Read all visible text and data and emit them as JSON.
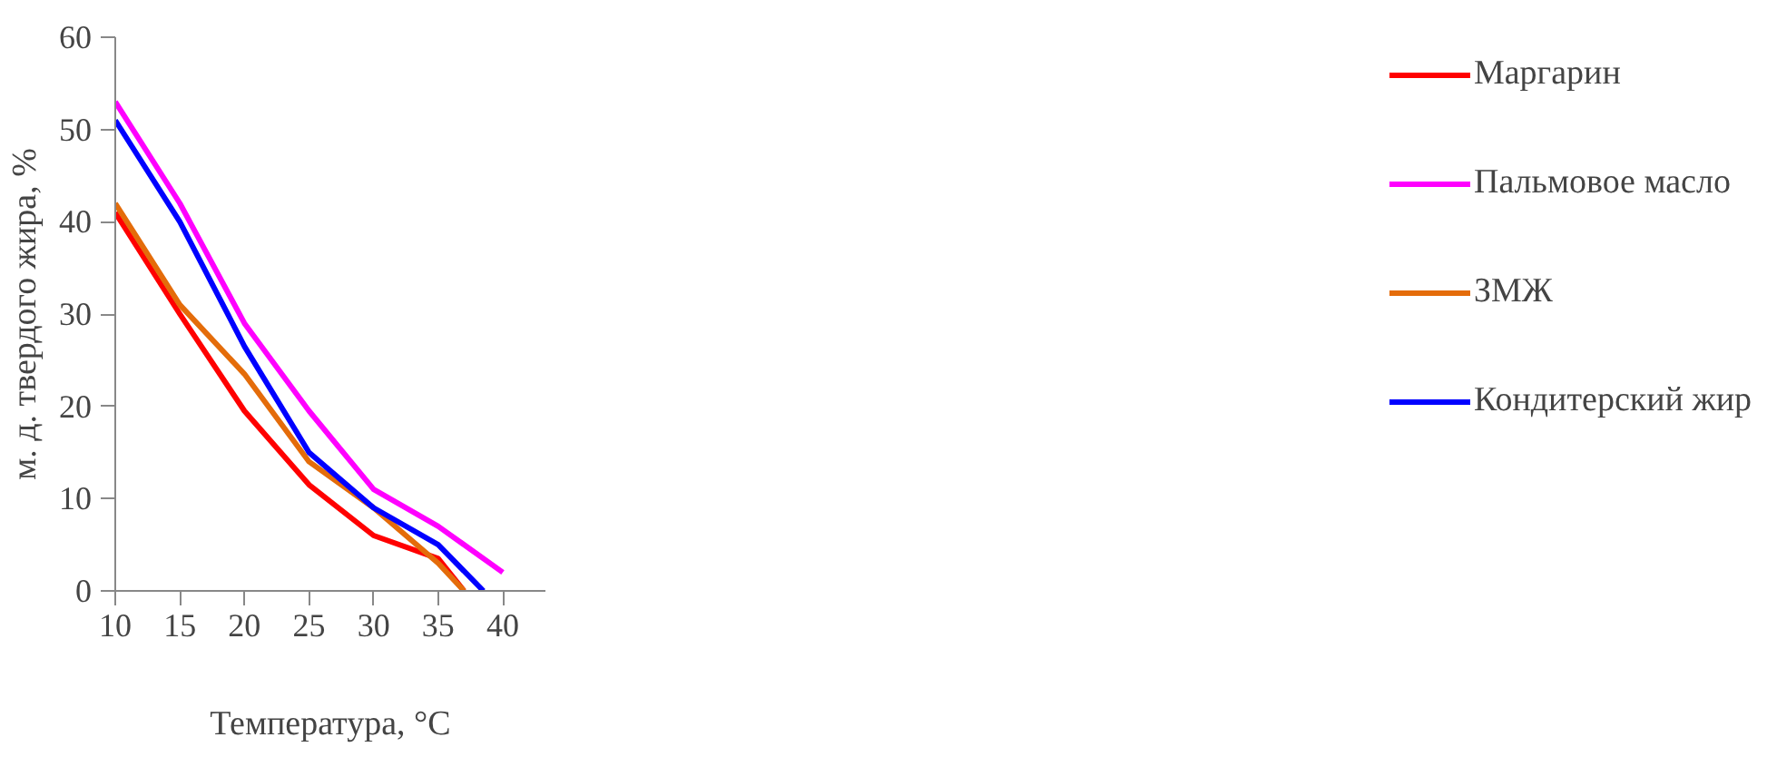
{
  "chart_data": {
    "type": "line",
    "xlabel": "Температура, °С",
    "ylabel": "м. д. твердого жира, %",
    "xlim": [
      10,
      43.3
    ],
    "xticks": [
      10,
      15,
      20,
      25,
      30,
      35,
      40
    ],
    "ylim": [
      0,
      60
    ],
    "yticks": [
      0,
      10,
      20,
      30,
      40,
      50,
      60
    ],
    "grid": false,
    "legend": "right",
    "marker": "none",
    "line_style": "solid",
    "series": [
      {
        "name": "Маргарин",
        "color": "#ff0000",
        "x": [
          10,
          15,
          20,
          25,
          30,
          35,
          37
        ],
        "values": [
          41,
          30,
          19.5,
          11.5,
          6,
          3.5,
          0
        ]
      },
      {
        "name": "Пальмовое масло",
        "color": "#ff00ff",
        "x": [
          10,
          15,
          20,
          25,
          30,
          35,
          40
        ],
        "values": [
          53,
          42,
          29,
          19.5,
          11,
          7,
          2
        ]
      },
      {
        "name": "ЗМЖ",
        "color": "#e46c0a",
        "x": [
          10,
          15,
          20,
          25,
          30,
          35,
          37
        ],
        "values": [
          42,
          31,
          23.5,
          14,
          9,
          3,
          0
        ]
      },
      {
        "name": "Кондитерский жир",
        "color": "#0000ff",
        "x": [
          10,
          15,
          20,
          25,
          30,
          35,
          38.5
        ],
        "values": [
          51,
          40,
          26.5,
          15,
          9,
          5,
          0
        ]
      }
    ]
  }
}
